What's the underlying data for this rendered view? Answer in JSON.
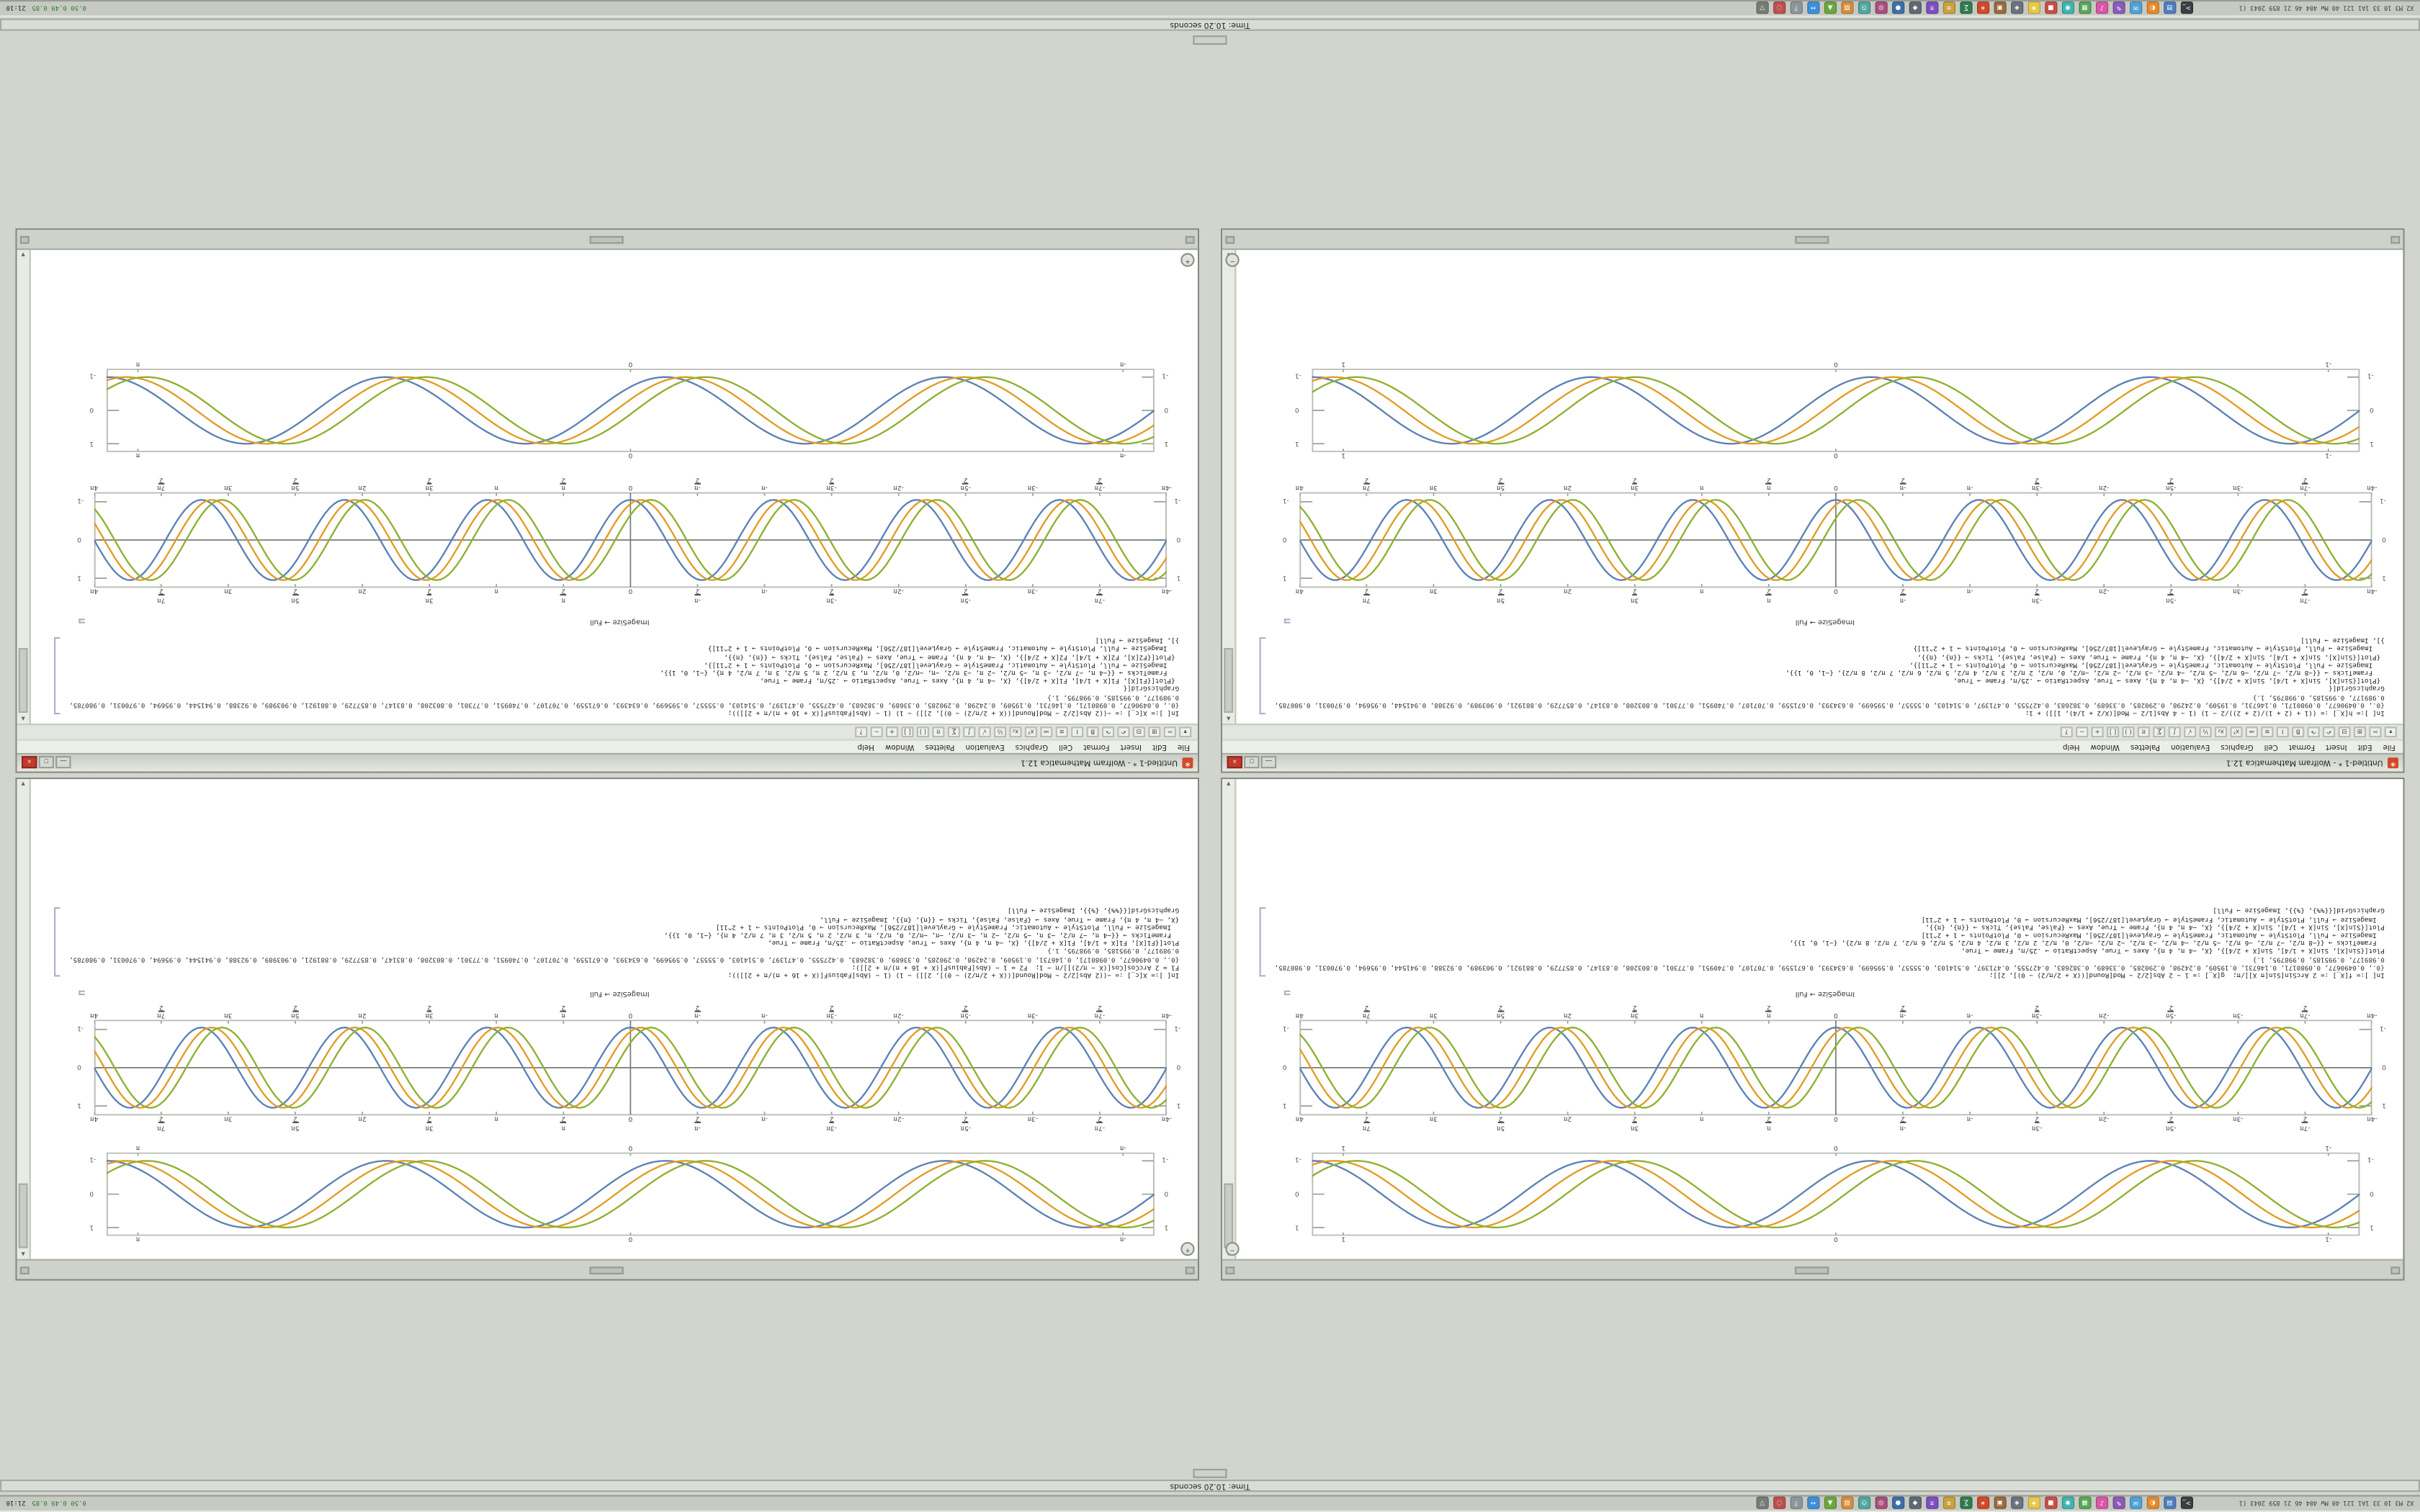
{
  "desktop": {
    "bg": "#d2d5cd"
  },
  "panels": {
    "left_text": "X2 M3 10 33 1A1 121 40 Mw 404 46 21 859 2043 (1",
    "icons": [
      {
        "n": "terminal",
        "c": "#3a3f44",
        "g": ">_"
      },
      {
        "n": "file-manager",
        "c": "#4f7dbf",
        "g": "▤"
      },
      {
        "n": "browser",
        "c": "#e8892a",
        "g": "◐"
      },
      {
        "n": "mail",
        "c": "#4ea3d8",
        "g": "✉"
      },
      {
        "n": "editor",
        "c": "#8a5bb8",
        "g": "✎"
      },
      {
        "n": "music-player",
        "c": "#d957a8",
        "g": "♪"
      },
      {
        "n": "calculator",
        "c": "#5aa85a",
        "g": "▦"
      },
      {
        "n": "chat",
        "c": "#3fb5b0",
        "g": "◉"
      },
      {
        "n": "monitor",
        "c": "#c94f44",
        "g": "■"
      },
      {
        "n": "favorites",
        "c": "#e8c84a",
        "g": "★"
      },
      {
        "n": "viewer",
        "c": "#6b7280",
        "g": "◈"
      },
      {
        "n": "archive",
        "c": "#9a6b3f",
        "g": "▣"
      },
      {
        "n": "mathematica",
        "c": "#d14a28",
        "g": "∗"
      },
      {
        "n": "plotter",
        "c": "#2f7d4f",
        "g": "∑"
      },
      {
        "n": "notes",
        "c": "#c9a23f",
        "g": "≡"
      },
      {
        "n": "kernel",
        "c": "#7d4fbf",
        "g": "π"
      },
      {
        "n": "settings",
        "c": "#5f6a75",
        "g": "◆"
      },
      {
        "n": "disk",
        "c": "#3f6fa8",
        "g": "●"
      },
      {
        "n": "camera",
        "c": "#a84f7d",
        "g": "◎"
      },
      {
        "n": "clock-app",
        "c": "#4fa8a0",
        "g": "◷"
      },
      {
        "n": "paint",
        "c": "#d98c3f",
        "g": "▨"
      },
      {
        "n": "games",
        "c": "#6aa83f",
        "g": "▲"
      },
      {
        "n": "network",
        "c": "#3f8fd9",
        "g": "↔"
      },
      {
        "n": "help-app",
        "c": "#8f959d",
        "g": "?"
      },
      {
        "n": "search-app",
        "c": "#bf4f4f",
        "g": "◌"
      },
      {
        "n": "trash",
        "c": "#757d75",
        "g": "▽"
      }
    ],
    "tray": {
      "load": "0.50 0.49 0.85",
      "time": "21:10"
    }
  },
  "status_strips": {
    "top_text": "Time: 10.20 seconds",
    "bottom_text": "Time: 10.20 seconds"
  },
  "menu": {
    "items": [
      "File",
      "Edit",
      "Insert",
      "Format",
      "Cell",
      "Graphics",
      "Evaluation",
      "Palettes",
      "Window",
      "Help"
    ]
  },
  "toolbar": {
    "icons": [
      {
        "n": "style-dropdown",
        "g": "▾"
      },
      {
        "n": "cut",
        "g": "✂"
      },
      {
        "n": "copy",
        "g": "⊞"
      },
      {
        "n": "paste",
        "g": "⊟"
      },
      {
        "n": "undo",
        "g": "↶"
      },
      {
        "n": "redo",
        "g": "↷"
      },
      {
        "n": "bold",
        "g": "B"
      },
      {
        "n": "italic",
        "g": "I"
      },
      {
        "n": "align-left",
        "g": "≡"
      },
      {
        "n": "align-center",
        "g": "≔"
      },
      {
        "n": "superscript",
        "g": "x²"
      },
      {
        "n": "subscript",
        "g": "x₂"
      },
      {
        "n": "fraction",
        "g": "½"
      },
      {
        "n": "sqrt",
        "g": "√"
      },
      {
        "n": "integral",
        "g": "∫"
      },
      {
        "n": "sum",
        "g": "∑"
      },
      {
        "n": "pi",
        "g": "π"
      },
      {
        "n": "parentheses",
        "g": "( )"
      },
      {
        "n": "brackets",
        "g": "[ ]"
      },
      {
        "n": "plus",
        "g": "+"
      },
      {
        "n": "minus",
        "g": "−"
      },
      {
        "n": "help",
        "g": "?"
      }
    ]
  },
  "window_chrome": {
    "logo_glyph": "∗",
    "min_glyph": "—",
    "max_glyph": "□",
    "close_glyph": "×",
    "minus_glyph": "−",
    "plus_glyph": "+",
    "scroll_up_glyph": "▲",
    "scroll_down_glyph": "▼"
  },
  "plot_style": {
    "colors": [
      "#5e81b5",
      "#e19c24",
      "#8fb032"
    ],
    "frame": "#b9bdb5",
    "axis": "#777d76"
  },
  "plots": {
    "smooth_l": {
      "kind": "framed",
      "periods": 3.75,
      "phases": [
        0,
        0.5,
        1.0
      ],
      "amp": 40,
      "body_h": 54,
      "xticks": [
        "-1",
        "0",
        "1"
      ],
      "yticks": [
        "1",
        "0",
        "-1"
      ]
    },
    "osc_l": {
      "kind": "axes",
      "periods": 7.5,
      "phases": [
        0,
        0.5,
        1.0
      ],
      "amp": 42,
      "body_h": 62,
      "xticks": [
        "-4π",
        "-7π/2",
        "-3π",
        "-5π/2",
        "-2π",
        "-3π/2",
        "-π",
        "-π/2",
        "0",
        "π/2",
        "π",
        "3π/2",
        "2π",
        "5π/2",
        "3π",
        "7π/2",
        "4π"
      ],
      "yticks": [
        "1",
        "0",
        "-1"
      ]
    },
    "smooth_r": {
      "kind": "framed",
      "periods": 3.75,
      "phases": [
        0,
        0.45,
        0.9
      ],
      "amp": 40,
      "body_h": 54,
      "xticks": [
        "-π",
        "0",
        "π"
      ],
      "yticks": [
        "1",
        "0",
        "-1"
      ]
    },
    "osc_r": {
      "kind": "axes",
      "periods": 7.5,
      "phases": [
        0,
        0.45,
        0.9
      ],
      "amp": 42,
      "body_h": 62,
      "xticks": [
        "-4π",
        "-7π/2",
        "-3π",
        "-5π/2",
        "-2π",
        "-3π/2",
        "-π",
        "-π/2",
        "0",
        "π/2",
        "π",
        "3π/2",
        "2π",
        "5π/2",
        "3π",
        "7π/2",
        "4π"
      ],
      "yticks": [
        "1",
        "0",
        "-1"
      ]
    }
  },
  "windows": [
    {
      "label": "ImageSize → Full",
      "code": [
        "In[ ]:= f[X_] := 2 ArcSin[Sin[π X]]/π;  g[X_] := 1 − 2 Abs[2/2 − Mod[Round[((X + 2/π/2) − 0)], 2]];",
        "{0., 0.0490677, 0.0980171, 0.146731, 0.19509, 0.24298, 0.290285, 0.33689, 0.382683, 0.427555, 0.471397, 0.514103, 0.55557, 0.595699, 0.634393, 0.671559, 0.707107, 0.740951, 0.77301, 0.803208, 0.83147, 0.857729, 0.881921, 0.903989, 0.92388, 0.941544, 0.95694, 0.970031, 0.980785, 0.989177, 0.995185, 0.998795, 1.}",
        "Plot[{Sin[X], Sin[X + 1/4], Sin[X + 2/4]}, {X, −4 π, 4 π}, Axes → True, AspectRatio → .25/π, Frame → True,",
        "  FrameTicks → {{−8 π/2, −7 π/2, −6 π/2, −5 π/2, −4 π/2, −3 π/2, −2 π/2, −π/2, 0, π/2, 2 π/2, 3 π/2, 4 π/2, 5 π/2, 6 π/2, 7 π/2, 8 π/2}, {−1, 0, 1}},",
        "  ImageSize → Full, PlotStyle → Automatic, FrameStyle → GrayLevel[187/256], MaxRecursion → 0, PlotPoints → 1 + 2^11]",
        "Plot[{Sin[X], Sin[X + 1/4], Sin[X + 2/4]}, {X, −4 π, 4 π}, Frame → True, Axes → {False, False}, Ticks → {{π}, {π}},",
        "  ImageSize → Full, PlotStyle → Automatic, FrameStyle → GrayLevel[187/256], MaxRecursion → 0, PlotPoints → 1 + 2^11]",
        "GraphicsGrid[{{%%}, {%}}, ImageSize → Full]"
      ]
    },
    {
      "label": "ImageSize → Full",
      "code": [
        "In[ ]:= X[c_] := −((2 Abs[2/2 − Mod[Round[((X + 2/π/2) − 0)], 2]]) − 1) (1 − (Abs[FabiusF[(X + 16 + π)/π + 2]]));",
        "F1 = 2 ArcCos[Cos[(X − π/2)]]/π − 1;  F2 = 1 − (Abs[FabiusF[(X + 16 + π)/π + 2]]);",
        "{0., 0.0490677, 0.0980171, 0.146731, 0.19509, 0.24298, 0.290285, 0.33689, 0.382683, 0.427555, 0.471397, 0.514103, 0.55557, 0.595699, 0.634393, 0.671559, 0.707107, 0.740951, 0.77301, 0.803208, 0.83147, 0.857729, 0.881921, 0.903989, 0.92388, 0.941544, 0.95694, 0.970031, 0.980785, 0.989177, 0.995185, 0.998795, 1.}",
        "Plot[{F1[X], F1[X + 1/4], F1[X + 2/4]}, {X, −4 π, 4 π}, Axes → True, AspectRatio → .25/π, Frame → True,",
        "  FrameTicks → {{−4 π, −7 π/2, −3 π, −5 π/2, −2 π, −3 π/2, −π, −π/2, 0, π/2, π, 3 π/2, 2 π, 5 π/2, 3 π, 7 π/2, 4 π}, {−1, 0, 1}},",
        "  ImageSize → Full, PlotStyle → Automatic, FrameStyle → GrayLevel[187/256], MaxRecursion → 0, PlotPoints → 1 + 2^11]",
        "{X, −4 π, 4 π}, Frame → True, Axes → {False, False}, Ticks → {{π}, {π}}, ImageSize → Full,",
        "GraphicsGrid[{{%%}, {%}}, ImageSize → Full]"
      ]
    },
    {
      "title": "Untitled-1 * - Wolfram Mathematica 12.1",
      "label": "ImageSize → Full",
      "code": [
        "In[ ]:= h[X_] := ((1 + (2 + 1)/(2 + 2))/2 − 1) (1 − 4 Abs[1/2 − Mod[(X/2 + 1/4), 1]]) + 1;",
        "{0., 0.0490677, 0.0980171, 0.146731, 0.19509, 0.24298, 0.290285, 0.33689, 0.382683, 0.427555, 0.471397, 0.514103, 0.55557, 0.595699, 0.634393, 0.671559, 0.707107, 0.740951, 0.77301, 0.803208, 0.83147, 0.857729, 0.881921, 0.903989, 0.92388, 0.941544, 0.95694, 0.970031, 0.980785, 0.989177, 0.995185, 0.998795, 1.}",
        "GraphicsGrid[{",
        " {Plot[{Sin[X], Sin[X + 1/4], Sin[X + 2/4]}, {X, −4 π, 4 π}, Axes → True, AspectRatio → .25/π, Frame → True,",
        "   FrameTicks → {{−8 π/2, −7 π/2, −6 π/2, −5 π/2, −4 π/2, −3 π/2, −2 π/2, −π/2, 0, π/2, 2 π/2, 3 π/2, 4 π/2, 5 π/2, 6 π/2, 7 π/2, 8 π/2}, {−1, 0, 1}},",
        "   ImageSize → Full, PlotStyle → Automatic, FrameStyle → GrayLevel[187/256], MaxRecursion → 0, PlotPoints → 1 + 2^11]},",
        " {Plot[{Sin[X], Sin[X + 1/4], Sin[X + 2/4]}, {X, −4 π, 4 π}, Frame → True, Axes → {False, False}, Ticks → {{π}, {π}},",
        "   ImageSize → Full, PlotStyle → Automatic, FrameStyle → GrayLevel[187/256], MaxRecursion → 0, PlotPoints → 1 + 2^11]}",
        "}], ImageSize → Full]"
      ]
    },
    {
      "title": "Untitled-1 * - Wolfram Mathematica 12.1",
      "label": "ImageSize → Full",
      "code": [
        "In[ ]:= X[c_] := −((2 Abs[2/2 − Mod[Round[((X + 2/π/2) − 0)], 2]]) − 1) (1 − (Abs[FabiusF[(X + 16 + π)/π + 2]]));",
        "{0., 0.0490677, 0.0980171, 0.146731, 0.19509, 0.24298, 0.290285, 0.33689, 0.382683, 0.427555, 0.471397, 0.514103, 0.55557, 0.595699, 0.634393, 0.671559, 0.707107, 0.740951, 0.77301, 0.803208, 0.83147, 0.857729, 0.881921, 0.903989, 0.92388, 0.941544, 0.95694, 0.970031, 0.980785, 0.989177, 0.995185, 0.998795, 1.}",
        "GraphicsGrid[{",
        " {Plot[{F1[X], F1[X + 1/4], F1[X + 2/4]}, {X, −4 π, 4 π}, Axes → True, AspectRatio → .25/π, Frame → True,",
        "   FrameTicks → {{−4 π, −7 π/2, −3 π, −5 π/2, −2 π, −3 π/2, −π, −π/2, 0, π/2, π, 3 π/2, 2 π, 5 π/2, 3 π, 7 π/2, 4 π}, {−1, 0, 1}},",
        "   ImageSize → Full, PlotStyle → Automatic, FrameStyle → GrayLevel[187/256], MaxRecursion → 0, PlotPoints → 1 + 2^11]},",
        " {Plot[{F2[X], F2[X + 1/4], F2[X + 2/4]}, {X, −4 π, 4 π}, Frame → True, Axes → {False, False}, Ticks → {{π}, {π}},",
        "   ImageSize → Full, PlotStyle → Automatic, FrameStyle → GrayLevel[187/256], MaxRecursion → 0, PlotPoints → 1 + 2^11]}",
        "}], ImageSize → Full]"
      ]
    }
  ]
}
